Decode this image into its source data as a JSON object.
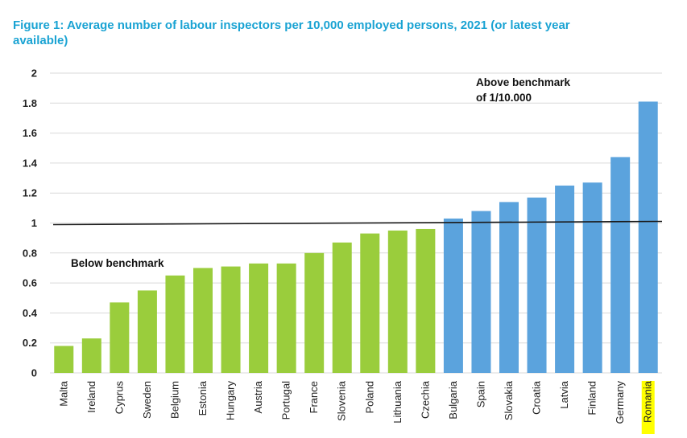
{
  "chart_data": {
    "type": "bar",
    "title": "Figure 1: Average number of labour inspectors per 10,000 employed persons, 2021 (or latest year available)",
    "categories": [
      "Malta",
      "Ireland",
      "Cyprus",
      "Sweden",
      "Belgium",
      "Estonia",
      "Hungary",
      "Austria",
      "Portugal",
      "France",
      "Slovenia",
      "Poland",
      "Lithuania",
      "Czechia",
      "Bulgaria",
      "Spain",
      "Slovakia",
      "Croatia",
      "Latvia",
      "Finland",
      "Germany",
      "Romania"
    ],
    "values": [
      0.18,
      0.23,
      0.47,
      0.55,
      0.65,
      0.7,
      0.71,
      0.73,
      0.73,
      0.8,
      0.87,
      0.93,
      0.95,
      0.96,
      1.03,
      1.08,
      1.14,
      1.17,
      1.25,
      1.27,
      1.44,
      1.81
    ],
    "benchmark": 1,
    "ylim": [
      0,
      2
    ],
    "yticks": [
      "0",
      "0.2",
      "0.4",
      "0.6",
      "0.8",
      "1",
      "1.2",
      "1.4",
      "1.6",
      "1.8",
      "2"
    ],
    "grid": true,
    "highlighted_category": "Romania",
    "colors": {
      "below": "#9acd3c",
      "above": "#5ba3dd",
      "benchmark_line": "#1a1a1a",
      "title": "#1aa3d3",
      "highlight": "#ffff00",
      "grid": "#d9d9d9"
    },
    "annotations": {
      "below": "Below benchmark",
      "above_line1": "Above benchmark",
      "above_line2": "of 1/10.000"
    }
  }
}
